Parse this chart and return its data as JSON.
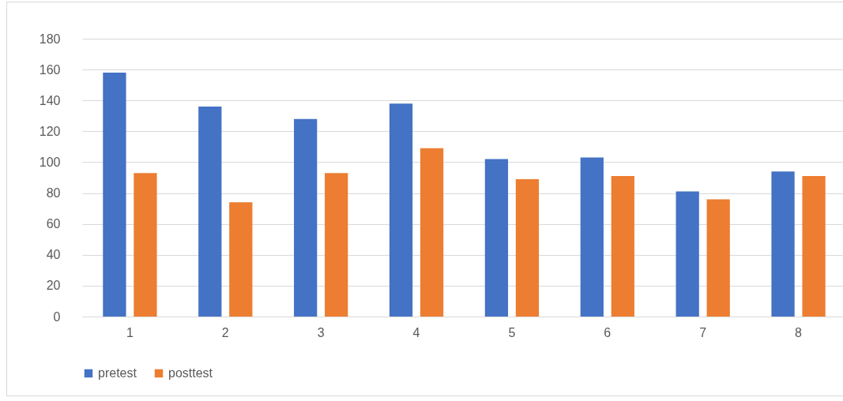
{
  "chart_data": {
    "type": "bar",
    "categories": [
      "1",
      "2",
      "3",
      "4",
      "5",
      "6",
      "7",
      "8"
    ],
    "series": [
      {
        "name": "pretest",
        "color": "#4472c4",
        "values": [
          158,
          136,
          128,
          138,
          102,
          103,
          81,
          94
        ]
      },
      {
        "name": "posttest",
        "color": "#ed7d31",
        "values": [
          93,
          74,
          93,
          109,
          89,
          91,
          76,
          91
        ]
      }
    ],
    "ylim": [
      0,
      180
    ],
    "yticks": [
      0,
      20,
      40,
      60,
      80,
      100,
      120,
      140,
      160,
      180
    ],
    "grid": "y",
    "legend": "bottom"
  }
}
